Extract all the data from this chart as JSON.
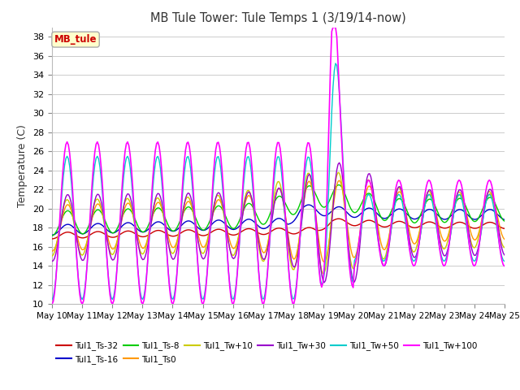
{
  "title": "MB Tule Tower: Tule Temps 1 (3/19/14-now)",
  "ylabel": "Temperature (C)",
  "ylim": [
    10,
    39
  ],
  "yticks": [
    10,
    12,
    14,
    16,
    18,
    20,
    22,
    24,
    26,
    28,
    30,
    32,
    34,
    36,
    38
  ],
  "xtick_labels": [
    "May 10",
    "May 11",
    "May 12",
    "May 13",
    "May 14",
    "May 15",
    "May 16",
    "May 17",
    "May 18",
    "May 19",
    "May 20",
    "May 21",
    "May 22",
    "May 23",
    "May 24",
    "May 25"
  ],
  "legend_box_text": "MB_tule",
  "legend_box_fg": "#cc0000",
  "legend_box_bg": "#ffffcc",
  "series_colors": {
    "Tul1_Ts-32": "#cc0000",
    "Tul1_Ts-16": "#0000cc",
    "Tul1_Ts-8": "#00cc00",
    "Tul1_Ts0": "#ff9900",
    "Tul1_Tw+10": "#cccc00",
    "Tul1_Tw+30": "#9900cc",
    "Tul1_Tw+50": "#00cccc",
    "Tul1_Tw+100": "#ff00ff"
  },
  "legend_order": [
    "Tul1_Ts-32",
    "Tul1_Ts-16",
    "Tul1_Ts-8",
    "Tul1_Ts0",
    "Tul1_Tw+10",
    "Tul1_Tw+30",
    "Tul1_Tw+50",
    "Tul1_Tw+100"
  ]
}
